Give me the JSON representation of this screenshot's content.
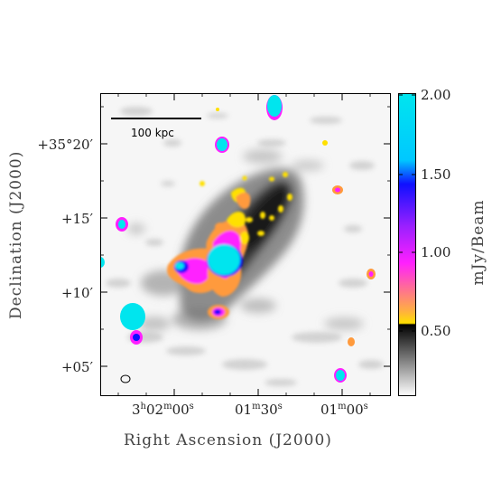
{
  "scalebar": {
    "label": "100 kpc"
  },
  "axes": {
    "xlabel": "Right Ascension (J2000)",
    "ylabel": "Declination (J2000)",
    "ra_ticks": [
      {
        "h": "3",
        "h_unit": "h",
        "m": "02",
        "m_unit": "m",
        "s": "00",
        "s_unit": "s"
      },
      {
        "h": "",
        "h_unit": "",
        "m": "01",
        "m_unit": "m",
        "s": "30",
        "s_unit": "s"
      },
      {
        "h": "",
        "h_unit": "",
        "m": "01",
        "m_unit": "m",
        "s": "00",
        "s_unit": "s"
      }
    ],
    "dec_ticks": [
      "+35°20′",
      "+15′",
      "+10′",
      "+05′"
    ]
  },
  "colorbar": {
    "label": "mJy/Beam",
    "ticks": [
      "2.00",
      "1.50",
      "1.00",
      "0.50"
    ],
    "colors": {
      "cyan": "#00e5ee",
      "blue": "#1010ff",
      "magenta": "#ff20ff",
      "orange": "#ff9a3c",
      "yellow": "#ffe000",
      "black": "#000000",
      "white": "#ffffff"
    }
  }
}
